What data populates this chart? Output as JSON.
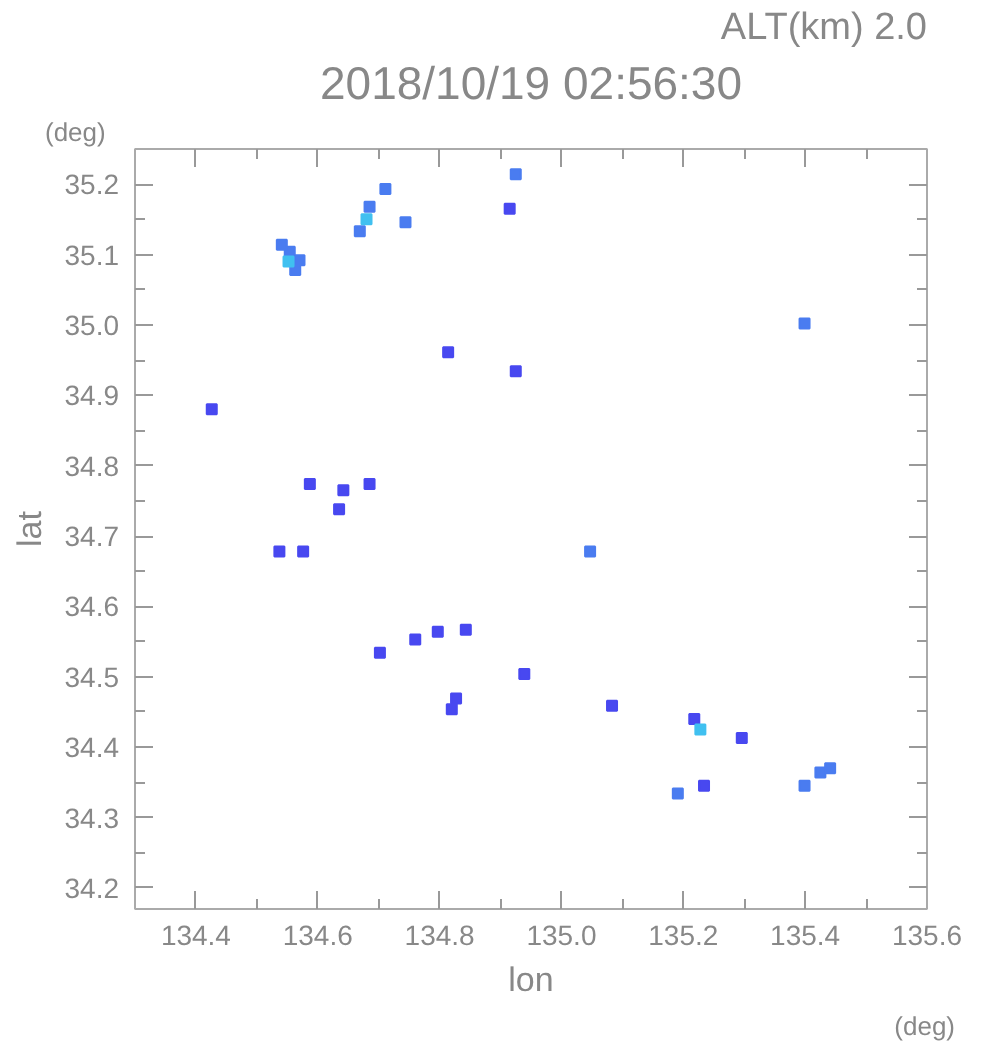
{
  "chart_data": {
    "type": "scatter",
    "title": "2018/10/19 02:56:30",
    "subtitle": "ALT(km) 2.0",
    "xlabel": "lon",
    "ylabel": "lat",
    "annotations": [
      "(deg)",
      "(deg)"
    ],
    "xlim": [
      134.3,
      135.6
    ],
    "ylim": [
      34.17,
      35.25
    ],
    "xticks": [
      134.4,
      {
        "value": 134.5,
        "label": null
      },
      134.6,
      {
        "value": 134.7,
        "label": null
      },
      134.8,
      {
        "value": 134.9,
        "label": null
      },
      {
        "value": 135.0,
        "label": "135.0"
      },
      {
        "value": 135.1,
        "label": null
      },
      135.2,
      {
        "value": 135.3,
        "label": null
      },
      135.4,
      {
        "value": 135.5,
        "label": null
      },
      135.6
    ],
    "yticks": [
      34.2,
      {
        "value": 34.25,
        "label": null
      },
      34.3,
      {
        "value": 34.35,
        "label": null
      },
      34.4,
      {
        "value": 34.45,
        "label": null
      },
      34.5,
      {
        "value": 34.55,
        "label": null
      },
      34.6,
      {
        "value": 34.65,
        "label": null
      },
      34.7,
      {
        "value": 34.75,
        "label": null
      },
      34.8,
      {
        "value": 34.85,
        "label": null
      },
      34.9,
      {
        "value": 34.95,
        "label": null
      },
      {
        "value": 35.0,
        "label": "35.0"
      },
      {
        "value": 35.05,
        "label": null
      },
      35.1,
      {
        "value": 35.15,
        "label": null
      },
      35.2
    ],
    "grid": false,
    "marker": "square",
    "series": [
      {
        "color": "#4a7cf0",
        "x": [
          134.554,
          134.541,
          134.563,
          134.57,
          134.685,
          134.711,
          134.669,
          134.744,
          134.925,
          135.047,
          135.399,
          135.191,
          135.425,
          135.399,
          135.441
        ],
        "values": [
          35.104,
          35.114,
          35.078,
          35.092,
          35.168,
          35.193,
          35.133,
          35.146,
          35.214,
          34.678,
          35.002,
          34.334,
          34.364,
          34.345,
          34.37
        ]
      },
      {
        "color": "#4848f0",
        "x": [
          134.915,
          134.814,
          134.925,
          134.426,
          134.587,
          134.685,
          134.642,
          134.635,
          134.537,
          134.576,
          134.797,
          134.843,
          134.702,
          134.76,
          134.939,
          134.82,
          134.827,
          135.083,
          135.218,
          135.296,
          135.234
        ],
        "values": [
          35.165,
          34.961,
          34.934,
          34.88,
          34.774,
          34.774,
          34.765,
          34.738,
          34.678,
          34.678,
          34.564,
          34.567,
          34.534,
          34.553,
          34.504,
          34.454,
          34.469,
          34.459,
          34.44,
          34.413,
          34.345
        ]
      },
      {
        "color": "#40c0f0",
        "x": [
          134.552,
          134.68,
          135.228
        ],
        "values": [
          35.09,
          35.15,
          34.425
        ]
      }
    ]
  }
}
